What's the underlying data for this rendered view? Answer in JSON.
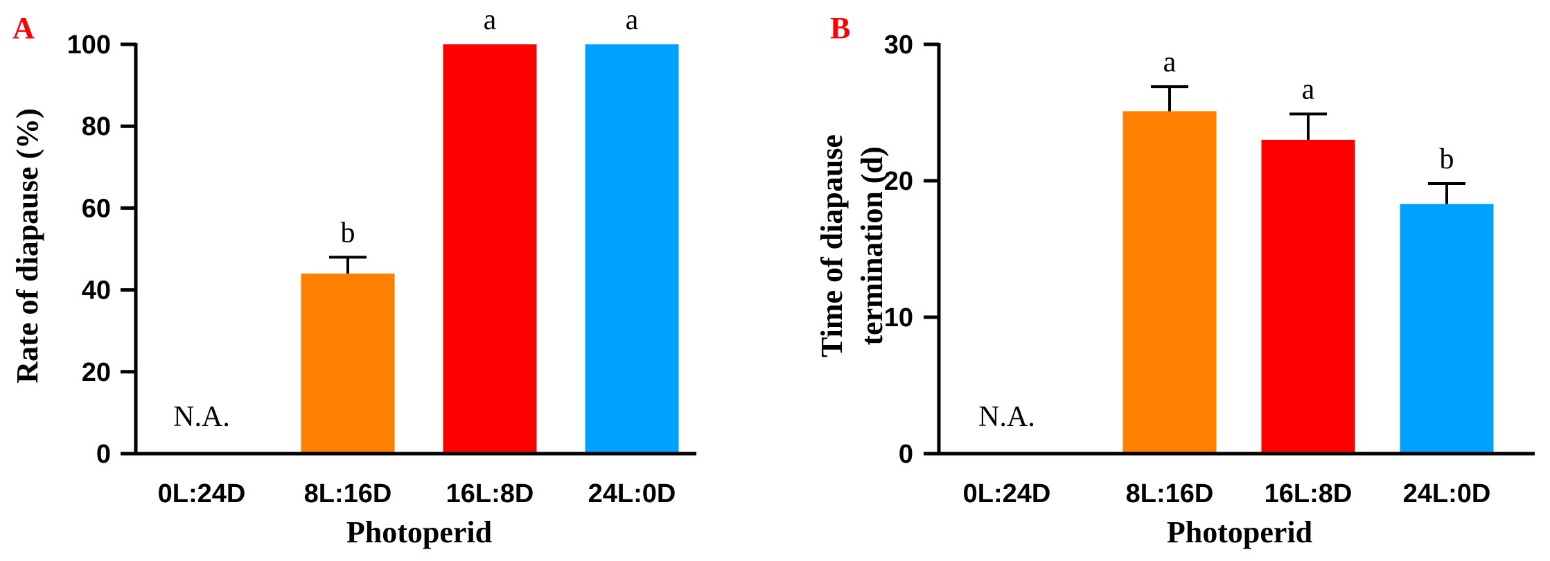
{
  "chart_data": [
    {
      "panel": "A",
      "type": "bar",
      "categories": [
        "0L:24D",
        "8L:16D",
        "16L:8D",
        "24L:0D"
      ],
      "values": [
        null,
        44,
        100,
        100
      ],
      "errors": [
        null,
        4,
        0,
        0
      ],
      "bar_labels": [
        "N.A.",
        "b",
        "a",
        "a"
      ],
      "colors": [
        "#ffffff",
        "#ff8000",
        "#ff0000",
        "#00a2ff"
      ],
      "ylabel": "Rate of diapause (%)",
      "xlabel": "Photoperid",
      "ylim": [
        0,
        100
      ],
      "yticks": [
        0,
        20,
        40,
        60,
        80,
        100
      ],
      "grid": false
    },
    {
      "panel": "B",
      "type": "bar",
      "categories": [
        "0L:24D",
        "8L:16D",
        "16L:8D",
        "24L:0D"
      ],
      "values": [
        null,
        25.1,
        23.0,
        18.3
      ],
      "errors": [
        null,
        1.8,
        1.9,
        1.5
      ],
      "bar_labels": [
        "N.A.",
        "a",
        "a",
        "b"
      ],
      "colors": [
        "#ffffff",
        "#ff8000",
        "#ff0000",
        "#00a2ff"
      ],
      "ylabel_lines": [
        "Time of diapause",
        "termination (d)"
      ],
      "xlabel": "Photoperid",
      "ylim": [
        0,
        30
      ],
      "yticks": [
        0,
        10,
        20,
        30
      ],
      "grid": false
    }
  ],
  "panel_letter_color": "#ff0000"
}
